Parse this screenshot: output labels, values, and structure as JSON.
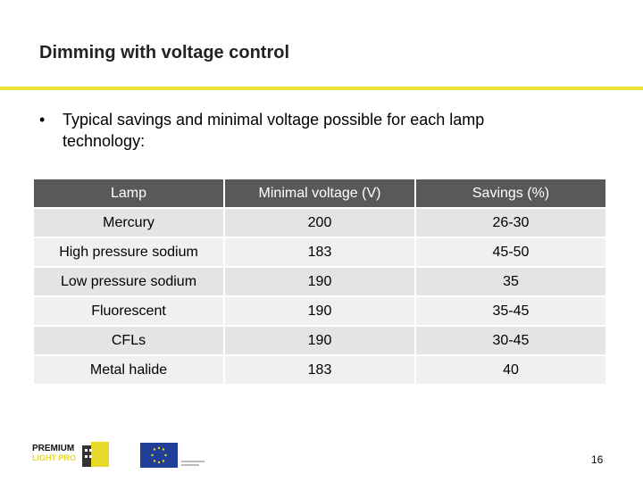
{
  "header": {
    "title": "Dimming with voltage control"
  },
  "bullets": [
    "Typical savings and minimal voltage possible for each lamp technology:"
  ],
  "table": {
    "columns": [
      "Lamp",
      "Minimal voltage (V)",
      "Savings (%)"
    ],
    "rows": [
      [
        "Mercury",
        200,
        "26-30"
      ],
      [
        "High pressure sodium",
        183,
        "45-50"
      ],
      [
        "Low pressure sodium",
        190,
        35
      ],
      [
        "Fluorescent",
        190,
        "35-45"
      ],
      [
        "CFLs",
        190,
        "30-45"
      ],
      [
        "Metal halide",
        183,
        40
      ]
    ]
  },
  "footer": {
    "logo": {
      "line1": "PREMIUM",
      "line2": "LIGHT PRO"
    },
    "page_number": 16
  }
}
